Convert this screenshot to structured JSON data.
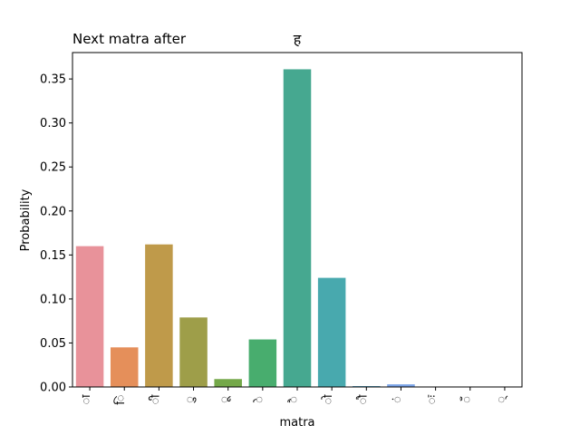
{
  "chart_data": {
    "type": "bar",
    "title_left": "Next matra after",
    "title_center": "ह",
    "xlabel": "matra",
    "ylabel": "Probability",
    "ylim": [
      0,
      0.38
    ],
    "yticks": [
      "0.00",
      "0.05",
      "0.10",
      "0.15",
      "0.20",
      "0.25",
      "0.30",
      "0.35"
    ],
    "ytick_values": [
      0,
      0.05,
      0.1,
      0.15,
      0.2,
      0.25,
      0.3,
      0.35
    ],
    "categories": [
      "ा",
      "ि",
      "ी",
      "ु",
      "ू",
      "े",
      "ै",
      "ो",
      "ौ",
      "ं",
      "ः",
      "ँ",
      "्"
    ],
    "values": [
      0.16,
      0.045,
      0.162,
      0.079,
      0.009,
      0.054,
      0.361,
      0.124,
      0.001,
      0.003,
      0.0,
      0.0,
      0.0
    ],
    "colors": [
      "#e8929a",
      "#e58f5a",
      "#bf9a4a",
      "#9e9e49",
      "#74a849",
      "#48ad6e",
      "#46a890",
      "#48a9ae",
      "#55a6c8",
      "#7ba4e8",
      "#b299ee",
      "#e089e6",
      "#ec8cbc"
    ],
    "grid": false
  }
}
